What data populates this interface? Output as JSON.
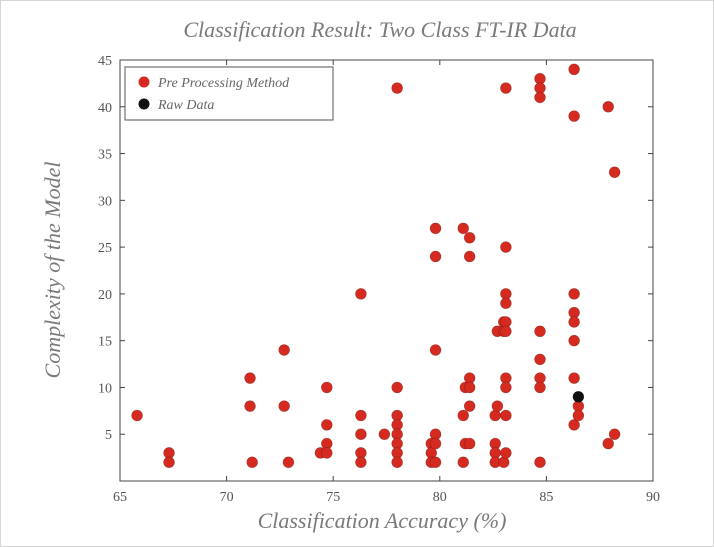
{
  "chart_data": {
    "type": "scatter",
    "title": "Classification Result: Two Class FT-IR Data",
    "xlabel": "Classification Accuracy (%)",
    "ylabel": "Complexity of the Model",
    "xlim": [
      65,
      90
    ],
    "ylim": [
      0,
      45
    ],
    "xticks": [
      65,
      70,
      75,
      80,
      85,
      90
    ],
    "yticks": [
      5,
      10,
      15,
      20,
      25,
      30,
      35,
      40,
      45
    ],
    "grid": false,
    "legend_position": "top-left",
    "series": [
      {
        "name": "Pre Processing Method",
        "color": "#d42a1f",
        "points": [
          [
            65.8,
            7
          ],
          [
            67.3,
            3
          ],
          [
            67.3,
            2
          ],
          [
            71.1,
            11
          ],
          [
            71.1,
            8
          ],
          [
            71.2,
            2
          ],
          [
            72.7,
            14
          ],
          [
            72.7,
            8
          ],
          [
            72.9,
            2
          ],
          [
            74.4,
            3
          ],
          [
            74.7,
            10
          ],
          [
            74.7,
            6
          ],
          [
            74.7,
            4
          ],
          [
            74.7,
            3
          ],
          [
            76.3,
            20
          ],
          [
            76.3,
            7
          ],
          [
            76.3,
            5
          ],
          [
            76.3,
            3
          ],
          [
            76.3,
            2
          ],
          [
            77.4,
            5
          ],
          [
            78.0,
            42
          ],
          [
            78.0,
            10
          ],
          [
            78.0,
            7
          ],
          [
            78.0,
            6
          ],
          [
            78.0,
            5
          ],
          [
            78.0,
            4
          ],
          [
            78.0,
            3
          ],
          [
            78.0,
            2
          ],
          [
            79.6,
            4
          ],
          [
            79.6,
            3
          ],
          [
            79.6,
            2
          ],
          [
            79.8,
            27
          ],
          [
            79.8,
            24
          ],
          [
            79.8,
            14
          ],
          [
            79.8,
            5
          ],
          [
            79.8,
            4
          ],
          [
            79.8,
            2
          ],
          [
            81.1,
            27
          ],
          [
            81.1,
            7
          ],
          [
            81.1,
            2
          ],
          [
            81.2,
            10
          ],
          [
            81.2,
            4
          ],
          [
            81.4,
            26
          ],
          [
            81.4,
            24
          ],
          [
            81.4,
            11
          ],
          [
            81.4,
            10
          ],
          [
            81.4,
            8
          ],
          [
            81.4,
            4
          ],
          [
            82.6,
            7
          ],
          [
            82.6,
            4
          ],
          [
            82.6,
            3
          ],
          [
            82.6,
            2
          ],
          [
            82.7,
            16
          ],
          [
            82.7,
            8
          ],
          [
            83.0,
            17
          ],
          [
            83.0,
            16
          ],
          [
            83.0,
            2
          ],
          [
            83.1,
            42
          ],
          [
            83.1,
            25
          ],
          [
            83.1,
            20
          ],
          [
            83.1,
            19
          ],
          [
            83.1,
            17
          ],
          [
            83.1,
            16
          ],
          [
            83.1,
            11
          ],
          [
            83.1,
            10
          ],
          [
            83.1,
            7
          ],
          [
            83.1,
            3
          ],
          [
            84.7,
            43
          ],
          [
            84.7,
            42
          ],
          [
            84.7,
            41
          ],
          [
            84.7,
            16
          ],
          [
            84.7,
            13
          ],
          [
            84.7,
            11
          ],
          [
            84.7,
            10
          ],
          [
            84.7,
            2
          ],
          [
            86.3,
            44
          ],
          [
            86.3,
            39
          ],
          [
            86.3,
            20
          ],
          [
            86.3,
            18
          ],
          [
            86.3,
            17
          ],
          [
            86.3,
            15
          ],
          [
            86.3,
            11
          ],
          [
            86.3,
            6
          ],
          [
            86.5,
            8
          ],
          [
            86.5,
            7
          ],
          [
            87.9,
            40
          ],
          [
            87.9,
            4
          ],
          [
            88.2,
            33
          ],
          [
            88.2,
            5
          ]
        ]
      },
      {
        "name": "Raw Data",
        "color": "#111111",
        "points": [
          [
            86.5,
            9
          ]
        ]
      }
    ]
  }
}
